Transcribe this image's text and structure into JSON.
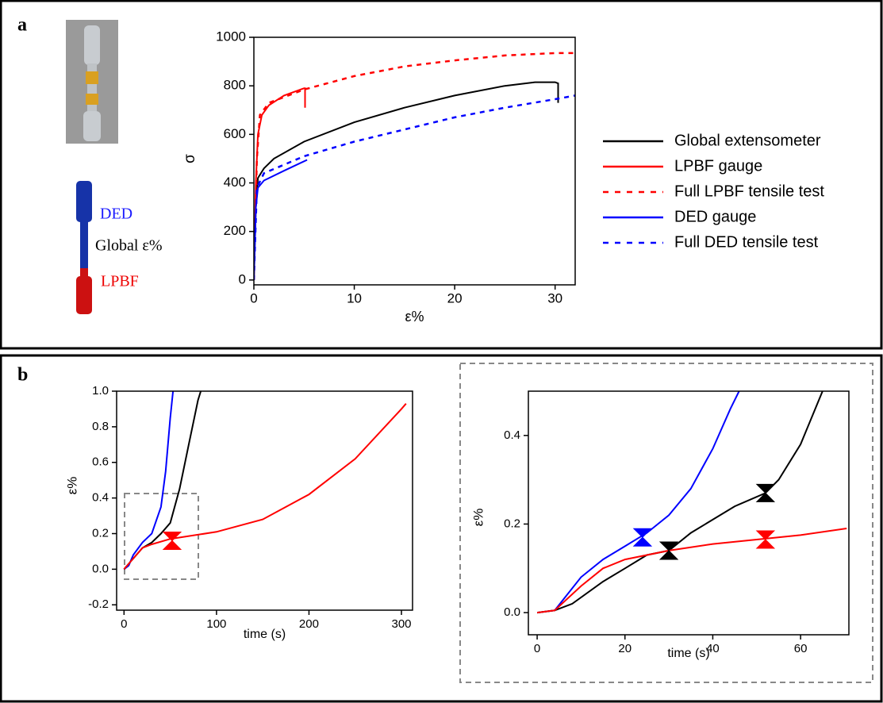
{
  "panel_labels": [
    "a",
    "b"
  ],
  "schematic": {
    "labels": [
      "DED",
      "Global ε%",
      "LPBF"
    ]
  },
  "chart_data": [
    {
      "type": "line",
      "xlabel": "ε%",
      "ylabel": "σ",
      "xlim": [
        0,
        32
      ],
      "ylim": [
        -20,
        1000
      ],
      "xticks": [
        0,
        10,
        20,
        30
      ],
      "yticks": [
        0,
        200,
        400,
        600,
        800,
        1000
      ],
      "legend": "right",
      "series": [
        {
          "name": "Global extensometer",
          "color": "#000000",
          "dashed": false,
          "x": [
            0,
            0.2,
            0.4,
            1,
            2,
            5,
            10,
            15,
            20,
            25,
            28,
            30,
            30.3,
            30.3
          ],
          "values": [
            0,
            300,
            420,
            460,
            500,
            570,
            650,
            710,
            760,
            800,
            815,
            815,
            810,
            730
          ]
        },
        {
          "name": "LPBF gauge",
          "color": "#ff0000",
          "dashed": false,
          "x": [
            0,
            0.2,
            0.4,
            0.8,
            1.5,
            3,
            5,
            5.1,
            5.1
          ],
          "values": [
            0,
            400,
            600,
            680,
            720,
            760,
            790,
            790,
            710
          ]
        },
        {
          "name": "Full LPBF tensile test",
          "color": "#ff0000",
          "dashed": true,
          "x": [
            0,
            0.3,
            0.6,
            1.5,
            5,
            10,
            15,
            20,
            25,
            30,
            32
          ],
          "values": [
            0,
            500,
            680,
            730,
            785,
            840,
            880,
            905,
            925,
            935,
            935
          ]
        },
        {
          "name": "DED gauge",
          "color": "#0000ff",
          "dashed": false,
          "x": [
            0,
            0.2,
            0.4,
            1,
            3,
            5.3
          ],
          "values": [
            0,
            300,
            380,
            410,
            450,
            495
          ]
        },
        {
          "name": "Full DED tensile test",
          "color": "#0000ff",
          "dashed": true,
          "x": [
            0,
            0.3,
            1,
            5,
            10,
            15,
            20,
            25,
            30,
            32
          ],
          "values": [
            0,
            380,
            440,
            510,
            570,
            620,
            670,
            710,
            745,
            760
          ]
        }
      ]
    },
    {
      "type": "line",
      "xlabel": "time (s)",
      "ylabel": "ε%",
      "xlim": [
        -8,
        312
      ],
      "ylim": [
        -0.23,
        1.0
      ],
      "xticks": [
        0,
        100,
        200,
        300
      ],
      "yticks": [
        -0.2,
        {
          "value": 0,
          "label": "0.0"
        },
        0.2,
        0.4,
        0.6,
        0.8,
        {
          "value": 1,
          "label": "1.0"
        }
      ],
      "series": [
        {
          "color": "#0000ff",
          "dashed": false,
          "x": [
            0,
            5,
            10,
            20,
            30,
            40,
            45,
            50,
            53
          ],
          "values": [
            0,
            0.02,
            0.08,
            0.15,
            0.2,
            0.35,
            0.55,
            0.85,
            1.0
          ]
        },
        {
          "color": "#000000",
          "dashed": false,
          "x": [
            0,
            10,
            20,
            30,
            40,
            50,
            60,
            70,
            80,
            83
          ],
          "values": [
            0,
            0.06,
            0.12,
            0.15,
            0.2,
            0.26,
            0.45,
            0.7,
            0.95,
            1.0
          ]
        },
        {
          "color": "#ff0000",
          "dashed": false,
          "x": [
            0,
            10,
            20,
            30,
            50,
            100,
            150,
            200,
            250,
            300,
            305
          ],
          "values": [
            0,
            0.06,
            0.12,
            0.14,
            0.17,
            0.21,
            0.28,
            0.42,
            0.62,
            0.9,
            0.93
          ]
        }
      ],
      "markers": {
        "x": [
          52
        ],
        "values": [
          0.16
        ],
        "colors": [
          "#ff0000"
        ]
      }
    },
    {
      "type": "line",
      "xlabel": "time (s)",
      "ylabel": "ε%",
      "xlim": [
        -2,
        71
      ],
      "ylim": [
        -0.05,
        0.5
      ],
      "xticks": [
        0,
        20,
        40,
        60
      ],
      "yticks": [
        {
          "value": 0,
          "label": "0.0"
        },
        0.2,
        0.4
      ],
      "series": [
        {
          "color": "#0000ff",
          "dashed": false,
          "x": [
            0,
            4,
            6,
            10,
            15,
            20,
            25,
            30,
            35,
            40,
            44,
            46
          ],
          "values": [
            0,
            0.005,
            0.03,
            0.08,
            0.12,
            0.15,
            0.18,
            0.22,
            0.28,
            0.37,
            0.46,
            0.5
          ]
        },
        {
          "color": "#000000",
          "dashed": false,
          "x": [
            0,
            4,
            8,
            15,
            20,
            25,
            30,
            35,
            40,
            45,
            52,
            55,
            60,
            65
          ],
          "values": [
            0,
            0.005,
            0.02,
            0.07,
            0.1,
            0.13,
            0.14,
            0.18,
            0.21,
            0.24,
            0.27,
            0.3,
            0.38,
            0.5
          ]
        },
        {
          "color": "#ff0000",
          "dashed": false,
          "x": [
            0,
            4,
            10,
            15,
            20,
            30,
            40,
            50,
            60,
            70.5
          ],
          "values": [
            0,
            0.005,
            0.06,
            0.1,
            0.12,
            0.14,
            0.155,
            0.165,
            0.175,
            0.19
          ]
        }
      ],
      "markers": {
        "x": [
          24,
          30,
          52,
          52
        ],
        "values": [
          0.17,
          0.14,
          0.27,
          0.165
        ],
        "colors": [
          "#0000ff",
          "#000000",
          "#000000",
          "#ff0000"
        ]
      }
    }
  ]
}
